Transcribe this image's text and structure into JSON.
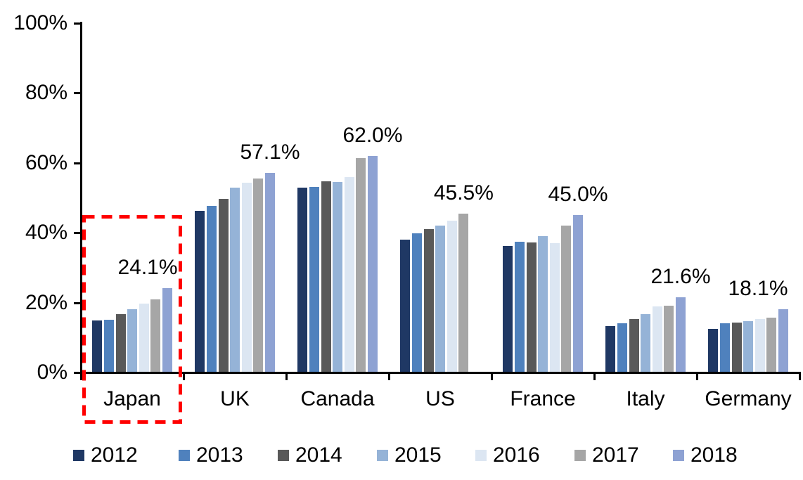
{
  "chart_data": {
    "type": "bar",
    "title": "",
    "xlabel": "",
    "ylabel": "",
    "categories": [
      "Japan",
      "UK",
      "Canada",
      "US",
      "France",
      "Italy",
      "Germany"
    ],
    "series": [
      {
        "name": "2012",
        "color": "#1F3864",
        "values": [
          14.9,
          46.2,
          52.9,
          38.0,
          36.3,
          13.2,
          12.5
        ]
      },
      {
        "name": "2013",
        "color": "#4F81BD",
        "values": [
          15.0,
          47.6,
          53.2,
          39.9,
          37.5,
          14.1,
          14.0
        ]
      },
      {
        "name": "2014",
        "color": "#595959",
        "values": [
          16.8,
          49.8,
          54.8,
          41.0,
          37.3,
          15.3,
          14.3
        ]
      },
      {
        "name": "2015",
        "color": "#95B3D7",
        "values": [
          18.1,
          53.0,
          54.5,
          42.0,
          39.0,
          16.8,
          14.7
        ]
      },
      {
        "name": "2016",
        "color": "#DCE6F2",
        "values": [
          19.8,
          54.4,
          56.0,
          43.4,
          37.1,
          18.9,
          15.3
        ]
      },
      {
        "name": "2017",
        "color": "#A6A6A6",
        "values": [
          20.9,
          55.6,
          61.4,
          45.5,
          42.1,
          19.1,
          15.8
        ]
      },
      {
        "name": "2018",
        "color": "#8EA2D3",
        "values": [
          24.1,
          57.1,
          62.0,
          null,
          45.0,
          21.6,
          18.1
        ]
      }
    ],
    "value_labels": [
      "24.1%",
      "57.1%",
      "62.0%",
      "45.5%",
      "45.0%",
      "21.6%",
      "18.1%"
    ],
    "y_axis": {
      "min": 0,
      "max": 100,
      "step": 20,
      "tick_labels": [
        "0%",
        "20%",
        "40%",
        "60%",
        "80%",
        "100%"
      ]
    },
    "legend": {
      "position": "bottom"
    },
    "grid": false,
    "highlight_box": {
      "category": "Japan",
      "style": "dashed-rectangle",
      "color": "#FF0000"
    },
    "layout_hints": {
      "label_dx": [
        -28,
        0,
        0,
        0,
        0,
        0,
        -36
      ]
    }
  }
}
